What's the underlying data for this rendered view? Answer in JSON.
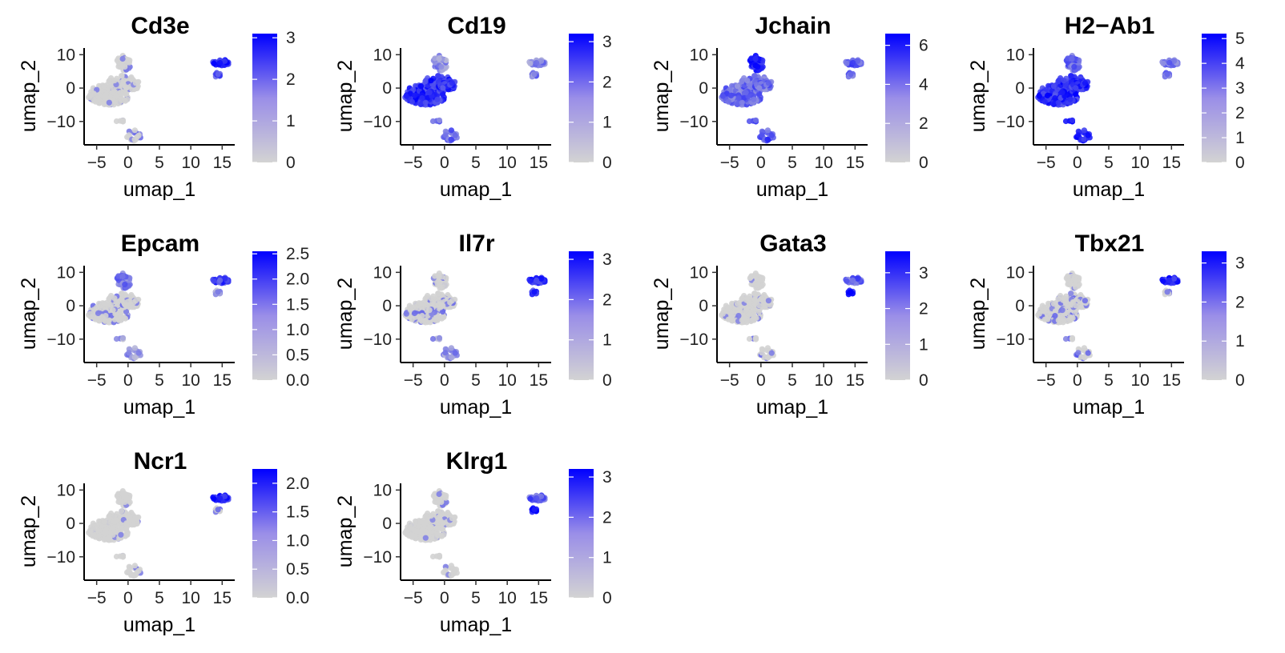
{
  "chart_data": [
    {
      "type": "scatter",
      "title": "Cd3e",
      "xlabel": "umap_1",
      "ylabel": "umap_2",
      "xlim": [
        -7,
        17
      ],
      "ylim": [
        -17,
        12
      ],
      "xticks": [
        "−5",
        "0",
        "5",
        "10",
        "15"
      ],
      "yticks": [
        "10",
        "0",
        "−10"
      ],
      "legend": {
        "min": 0,
        "max": 3.1,
        "ticks": [
          "0",
          "1",
          "2",
          "3"
        ],
        "low_color": "#d3d3d3",
        "high_color": "#0000ff"
      },
      "highlight": {
        "cd3e": 1.2,
        "cd19": 0.4,
        "jchain": 0.1,
        "h2ab1": 0.3,
        "epcam": 0.2,
        "il7r": 0.4,
        "gata3": 0.2,
        "tbx21": 0.5,
        "ncr1": 0.2,
        "klrg1": 0.3
      },
      "cluster_levels": {
        "main": 0.05,
        "top": 0.1,
        "island": 0.85,
        "island_low": 0.6,
        "bottom": 0.15
      }
    },
    {
      "type": "scatter",
      "title": "Cd19",
      "xlabel": "umap_1",
      "ylabel": "umap_2",
      "xlim": [
        -7,
        17
      ],
      "ylim": [
        -17,
        12
      ],
      "xticks": [
        "−5",
        "0",
        "5",
        "10",
        "15"
      ],
      "yticks": [
        "10",
        "0",
        "−10"
      ],
      "legend": {
        "min": 0,
        "max": 3.2,
        "ticks": [
          "0",
          "1",
          "2",
          "3"
        ],
        "low_color": "#d3d3d3",
        "high_color": "#0000ff"
      },
      "cluster_levels": {
        "main": 0.78,
        "top": 0.3,
        "island": 0.35,
        "island_low": 0.4,
        "bottom": 0.5
      }
    },
    {
      "type": "scatter",
      "title": "Jchain",
      "xlabel": "umap_1",
      "ylabel": "umap_2",
      "xlim": [
        -7,
        17
      ],
      "ylim": [
        -17,
        12
      ],
      "xticks": [
        "−5",
        "0",
        "5",
        "10",
        "15"
      ],
      "yticks": [
        "10",
        "0",
        "−10"
      ],
      "legend": {
        "min": 0,
        "max": 6.6,
        "ticks": [
          "0",
          "2",
          "4",
          "6"
        ],
        "low_color": "#d3d3d3",
        "high_color": "#0000ff"
      },
      "cluster_levels": {
        "main": 0.5,
        "top": 0.9,
        "island": 0.55,
        "island_low": 0.5,
        "bottom": 0.6
      }
    },
    {
      "type": "scatter",
      "title": "H2−Ab1",
      "xlabel": "umap_1",
      "ylabel": "umap_2",
      "xlim": [
        -7,
        17
      ],
      "ylim": [
        -17,
        12
      ],
      "xticks": [
        "−5",
        "0",
        "5",
        "10",
        "15"
      ],
      "yticks": [
        "10",
        "0",
        "−10"
      ],
      "legend": {
        "min": 0,
        "max": 5.2,
        "ticks": [
          "0",
          "1",
          "2",
          "3",
          "4",
          "5"
        ],
        "low_color": "#d3d3d3",
        "high_color": "#0000ff"
      },
      "cluster_levels": {
        "main": 0.8,
        "top": 0.55,
        "island": 0.4,
        "island_low": 0.45,
        "bottom": 0.85
      }
    },
    {
      "type": "scatter",
      "title": "Epcam",
      "xlabel": "umap_1",
      "ylabel": "umap_2",
      "xlim": [
        -7,
        17
      ],
      "ylim": [
        -17,
        12
      ],
      "xticks": [
        "−5",
        "0",
        "5",
        "10",
        "15"
      ],
      "yticks": [
        "10",
        "0",
        "−10"
      ],
      "legend": {
        "min": 0,
        "max": 2.55,
        "ticks": [
          "0.0",
          "0.5",
          "1.0",
          "1.5",
          "2.0",
          "2.5"
        ],
        "low_color": "#d3d3d3",
        "high_color": "#0000ff"
      },
      "cluster_levels": {
        "main": 0.12,
        "top": 0.45,
        "island": 0.7,
        "island_low": 0.3,
        "bottom": 0.25
      }
    },
    {
      "type": "scatter",
      "title": "Il7r",
      "xlabel": "umap_1",
      "ylabel": "umap_2",
      "xlim": [
        -7,
        17
      ],
      "ylim": [
        -17,
        12
      ],
      "xticks": [
        "−5",
        "0",
        "5",
        "10",
        "15"
      ],
      "yticks": [
        "10",
        "0",
        "−10"
      ],
      "legend": {
        "min": 0,
        "max": 3.2,
        "ticks": [
          "0",
          "1",
          "2",
          "3"
        ],
        "low_color": "#d3d3d3",
        "high_color": "#0000ff"
      },
      "cluster_levels": {
        "main": 0.15,
        "top": 0.15,
        "island": 0.8,
        "island_low": 0.75,
        "bottom": 0.3
      }
    },
    {
      "type": "scatter",
      "title": "Gata3",
      "xlabel": "umap_1",
      "ylabel": "umap_2",
      "xlim": [
        -7,
        17
      ],
      "ylim": [
        -17,
        12
      ],
      "xticks": [
        "−5",
        "0",
        "5",
        "10",
        "15"
      ],
      "yticks": [
        "10",
        "0",
        "−10"
      ],
      "legend": {
        "min": 0,
        "max": 3.6,
        "ticks": [
          "0",
          "1",
          "2",
          "3"
        ],
        "low_color": "#d3d3d3",
        "high_color": "#0000ff"
      },
      "cluster_levels": {
        "main": 0.06,
        "top": 0.05,
        "island": 0.55,
        "island_low": 0.95,
        "bottom": 0.15
      }
    },
    {
      "type": "scatter",
      "title": "Tbx21",
      "xlabel": "umap_1",
      "ylabel": "umap_2",
      "xlim": [
        -7,
        17
      ],
      "ylim": [
        -17,
        12
      ],
      "xticks": [
        "−5",
        "0",
        "5",
        "10",
        "15"
      ],
      "yticks": [
        "10",
        "0",
        "−10"
      ],
      "legend": {
        "min": 0,
        "max": 3.3,
        "ticks": [
          "0",
          "1",
          "2",
          "3"
        ],
        "low_color": "#d3d3d3",
        "high_color": "#0000ff"
      },
      "cluster_levels": {
        "main": 0.14,
        "top": 0.05,
        "island": 0.85,
        "island_low": 0.2,
        "bottom": 0.2
      }
    },
    {
      "type": "scatter",
      "title": "Ncr1",
      "xlabel": "umap_1",
      "ylabel": "umap_2",
      "xlim": [
        -7,
        17
      ],
      "ylim": [
        -17,
        12
      ],
      "xticks": [
        "−5",
        "0",
        "5",
        "10",
        "15"
      ],
      "yticks": [
        "10",
        "0",
        "−10"
      ],
      "legend": {
        "min": 0,
        "max": 2.25,
        "ticks": [
          "0.0",
          "0.5",
          "1.0",
          "1.5",
          "2.0"
        ],
        "low_color": "#d3d3d3",
        "high_color": "#0000ff"
      },
      "cluster_levels": {
        "main": 0.03,
        "top": 0.02,
        "island": 0.85,
        "island_low": 0.2,
        "bottom": 0.08
      }
    },
    {
      "type": "scatter",
      "title": "Klrg1",
      "xlabel": "umap_1",
      "ylabel": "umap_2",
      "xlim": [
        -7,
        17
      ],
      "ylim": [
        -17,
        12
      ],
      "xticks": [
        "−5",
        "0",
        "5",
        "10",
        "15"
      ],
      "yticks": [
        "10",
        "0",
        "−10"
      ],
      "legend": {
        "min": 0,
        "max": 3.2,
        "ticks": [
          "0",
          "1",
          "2",
          "3"
        ],
        "low_color": "#d3d3d3",
        "high_color": "#0000ff"
      },
      "cluster_levels": {
        "main": 0.03,
        "top": 0.1,
        "island": 0.55,
        "island_low": 0.95,
        "bottom": 0.06
      }
    }
  ]
}
